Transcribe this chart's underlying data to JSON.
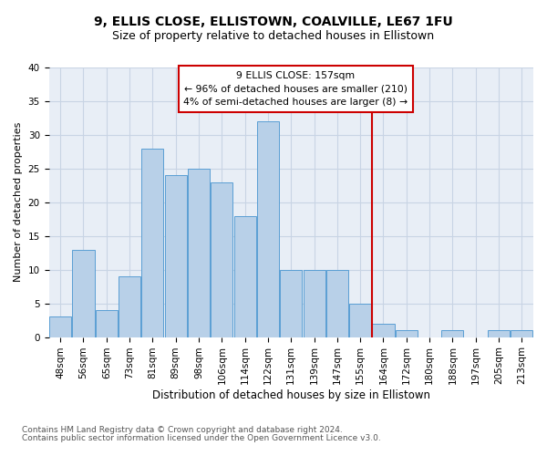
{
  "title1": "9, ELLIS CLOSE, ELLISTOWN, COALVILLE, LE67 1FU",
  "title2": "Size of property relative to detached houses in Ellistown",
  "xlabel": "Distribution of detached houses by size in Ellistown",
  "ylabel": "Number of detached properties",
  "footnote1": "Contains HM Land Registry data © Crown copyright and database right 2024.",
  "footnote2": "Contains public sector information licensed under the Open Government Licence v3.0.",
  "categories": [
    "48sqm",
    "56sqm",
    "65sqm",
    "73sqm",
    "81sqm",
    "89sqm",
    "98sqm",
    "106sqm",
    "114sqm",
    "122sqm",
    "131sqm",
    "139sqm",
    "147sqm",
    "155sqm",
    "164sqm",
    "172sqm",
    "180sqm",
    "188sqm",
    "197sqm",
    "205sqm",
    "213sqm"
  ],
  "values": [
    3,
    13,
    4,
    9,
    28,
    24,
    25,
    23,
    18,
    32,
    10,
    10,
    10,
    5,
    2,
    1,
    0,
    1,
    0,
    1,
    1
  ],
  "bar_color": "#b8d0e8",
  "bar_edge_color": "#5a9fd4",
  "vline_color": "#cc0000",
  "annotation_line1": "9 ELLIS CLOSE: 157sqm",
  "annotation_line2": "← 96% of detached houses are smaller (210)",
  "annotation_line3": "4% of semi-detached houses are larger (8) →",
  "annotation_box_edgecolor": "#cc0000",
  "annotation_fontsize": 7.8,
  "ylim": [
    0,
    40
  ],
  "yticks": [
    0,
    5,
    10,
    15,
    20,
    25,
    30,
    35,
    40
  ],
  "grid_color": "#c8d4e4",
  "background_color": "#e8eef6",
  "title1_fontsize": 10,
  "title2_fontsize": 9,
  "xlabel_fontsize": 8.5,
  "ylabel_fontsize": 8,
  "tick_fontsize": 7.5,
  "footnote_fontsize": 6.5,
  "vline_x_index": 13.5
}
